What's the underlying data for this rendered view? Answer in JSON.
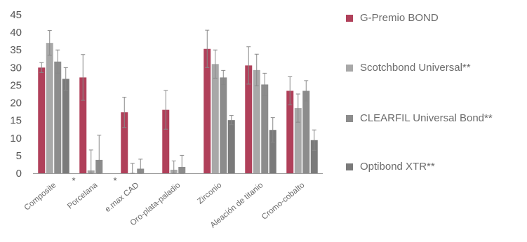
{
  "chart_data": {
    "type": "bar",
    "title": "",
    "xlabel": "",
    "ylabel": "",
    "ylim": [
      0,
      45
    ],
    "yticks": [
      0,
      5,
      10,
      15,
      20,
      25,
      30,
      35,
      40,
      45
    ],
    "grid": false,
    "legend_position": "right",
    "categories": [
      "Composite",
      "Porcelana",
      "e.max CAD",
      "Oro-plata-paladio",
      "Zirconio",
      "Aleación de titanio",
      "Cromo-cobalto"
    ],
    "series": [
      {
        "name": "G-Premio BOND",
        "color": "#b0405a",
        "values": [
          30.0,
          27.2,
          17.3,
          18.0,
          35.3,
          30.6,
          23.4
        ],
        "errors": [
          1.4,
          6.5,
          4.3,
          5.5,
          5.3,
          5.3,
          4.0
        ]
      },
      {
        "name": "Scotchbond Universal**",
        "color": "#a8a8a8",
        "values": [
          37.0,
          0.8,
          0.0,
          1.0,
          31.0,
          29.3,
          18.5
        ],
        "errors": [
          3.5,
          5.8,
          2.8,
          2.5,
          4.0,
          4.5,
          4.0
        ]
      },
      {
        "name": "CLEARFIL Universal Bond**",
        "color": "#8c8c8c",
        "values": [
          31.7,
          3.8,
          1.3,
          1.8,
          27.2,
          25.2,
          23.4
        ],
        "errors": [
          3.3,
          7.0,
          2.7,
          3.3,
          2.0,
          3.2,
          2.9
        ]
      },
      {
        "name": "Optibond XTR**",
        "color": "#7a7a7a",
        "values": [
          26.8,
          null,
          null,
          null,
          15.1,
          12.3,
          9.4
        ],
        "errors": [
          3.2,
          null,
          null,
          null,
          1.3,
          3.5,
          2.9
        ]
      }
    ],
    "annotations": [
      {
        "text": "*",
        "category": "Composite",
        "position": "between Composite and Porcelana"
      },
      {
        "text": "*",
        "category": "Porcelana",
        "position": "between Porcelana and e.max CAD"
      }
    ]
  }
}
